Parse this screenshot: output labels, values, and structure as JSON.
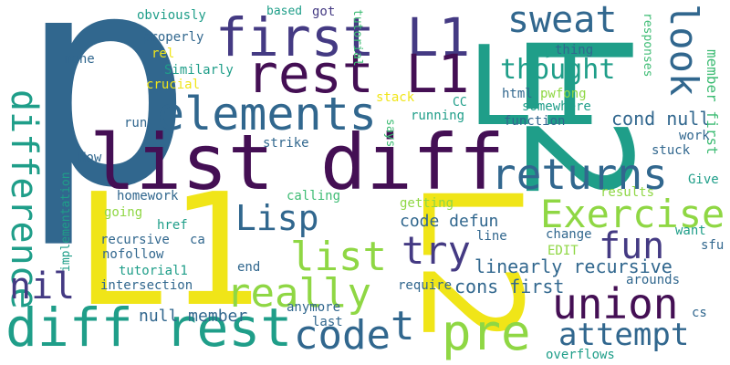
{
  "palette": {
    "yellow": "#f0e518",
    "lime": "#8fd744",
    "green": "#3ebc74",
    "teal": "#1f9e89",
    "blue": "#31678e",
    "indigo": "#443a83",
    "purple": "#440f54"
  },
  "words": [
    "p",
    "L2",
    "L1",
    "L2",
    "L1",
    "list diff",
    "first L1",
    "rest L1",
    "elements",
    "returns",
    "diff rest",
    "difference",
    "union",
    "pre",
    "Exercise",
    "fun",
    "look",
    "sweat",
    "thought",
    "try",
    "really",
    "Lisp",
    "list",
    "nil",
    "code",
    "t",
    "attempt",
    "cond null",
    "code defun",
    "linearly recursive",
    "cons first",
    "null member",
    "member first",
    "responses",
    "obviously",
    "based",
    "got",
    "tutorial",
    "properly",
    "rel",
    "none",
    "Similarly",
    "crucial",
    "run",
    "stack",
    "CC",
    "running",
    "function",
    "thing",
    "html",
    "pwfong",
    "somewhere",
    "says",
    "strike",
    "Now",
    "homework",
    "implementation",
    "going",
    "recursive",
    "href",
    "nofollow",
    "tutorial1",
    "intersection",
    "ca",
    "calling",
    "getting",
    "line",
    "EDIT",
    "change",
    "want",
    "sfu",
    "end",
    "require",
    "arounds",
    "anymore",
    "last",
    "cs",
    "overflows",
    "work",
    "stuck",
    "Give",
    "results"
  ]
}
